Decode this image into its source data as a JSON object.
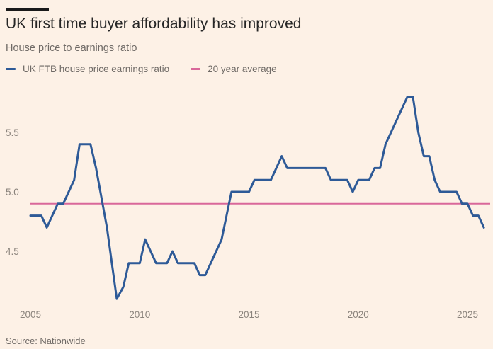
{
  "chart_data": {
    "type": "line",
    "title": "UK first time buyer affordability has improved",
    "subtitle": "House price to earnings ratio",
    "source": "Source: Nationwide",
    "xlabel": "",
    "ylabel": "",
    "xlim": [
      2005,
      2026
    ],
    "ylim": [
      4.0,
      5.9
    ],
    "xticks": [
      2005,
      2010,
      2015,
      2020,
      2025
    ],
    "xtick_labels": [
      "2005",
      "2010",
      "2015",
      "2020",
      "2025"
    ],
    "yticks": [
      4.5,
      5.0,
      5.5
    ],
    "ytick_labels": [
      "4.5",
      "5.0",
      "5.5"
    ],
    "grid": false,
    "legend_position": "top-left",
    "series": [
      {
        "name": "UK FTB house price earnings ratio",
        "color": "#2e5a97",
        "points": [
          [
            2005.0,
            4.8
          ],
          [
            2005.5,
            4.8
          ],
          [
            2005.75,
            4.7
          ],
          [
            2006.25,
            4.9
          ],
          [
            2006.5,
            4.9
          ],
          [
            2007.0,
            5.1
          ],
          [
            2007.25,
            5.4
          ],
          [
            2007.75,
            5.4
          ],
          [
            2008.0,
            5.2
          ],
          [
            2008.5,
            4.7
          ],
          [
            2008.95,
            4.1
          ],
          [
            2009.25,
            4.2
          ],
          [
            2009.5,
            4.4
          ],
          [
            2010.0,
            4.4
          ],
          [
            2010.25,
            4.6
          ],
          [
            2010.75,
            4.4
          ],
          [
            2011.25,
            4.4
          ],
          [
            2011.5,
            4.5
          ],
          [
            2011.75,
            4.4
          ],
          [
            2012.5,
            4.4
          ],
          [
            2012.75,
            4.3
          ],
          [
            2013.0,
            4.3
          ],
          [
            2013.75,
            4.6
          ],
          [
            2014.2,
            5.0
          ],
          [
            2015.0,
            5.0
          ],
          [
            2015.25,
            5.1
          ],
          [
            2016.0,
            5.1
          ],
          [
            2016.5,
            5.3
          ],
          [
            2016.75,
            5.2
          ],
          [
            2018.5,
            5.2
          ],
          [
            2018.75,
            5.1
          ],
          [
            2019.5,
            5.1
          ],
          [
            2019.75,
            5.0
          ],
          [
            2020.0,
            5.1
          ],
          [
            2020.5,
            5.1
          ],
          [
            2020.75,
            5.2
          ],
          [
            2021.0,
            5.2
          ],
          [
            2021.25,
            5.4
          ],
          [
            2022.25,
            5.8
          ],
          [
            2022.5,
            5.8
          ],
          [
            2022.75,
            5.5
          ],
          [
            2023.0,
            5.3
          ],
          [
            2023.25,
            5.3
          ],
          [
            2023.5,
            5.1
          ],
          [
            2023.75,
            5.0
          ],
          [
            2024.5,
            5.0
          ],
          [
            2024.75,
            4.9
          ],
          [
            2025.0,
            4.9
          ],
          [
            2025.25,
            4.8
          ],
          [
            2025.5,
            4.8
          ],
          [
            2025.75,
            4.7
          ]
        ]
      },
      {
        "name": "20 year average",
        "color": "#d9689a",
        "points": [
          [
            2005.0,
            4.9
          ],
          [
            2026.0,
            4.9
          ]
        ]
      }
    ]
  }
}
